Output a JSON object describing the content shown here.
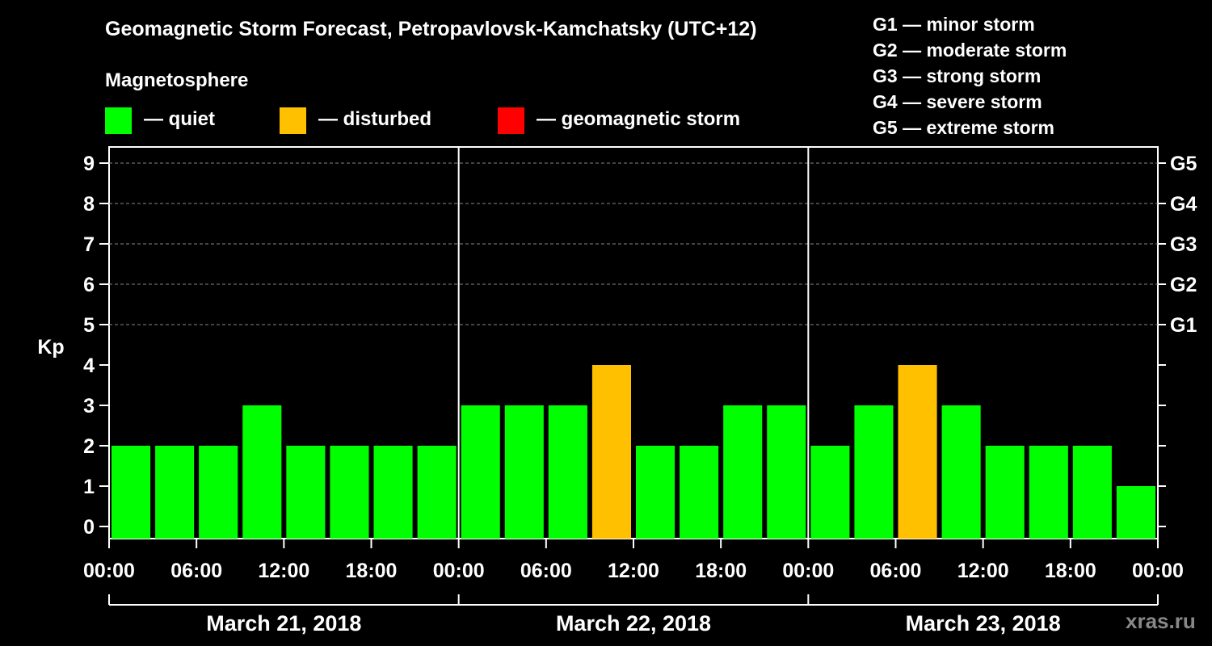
{
  "chart_data": {
    "type": "bar",
    "title": "Geomagnetic Storm Forecast, Petropavlovsk-Kamchatsky (UTC+12)",
    "subtitle": "Magnetosphere",
    "ylabel": "Kp",
    "ylim": [
      0,
      9
    ],
    "yticks": [
      "0",
      "1",
      "2",
      "3",
      "4",
      "5",
      "6",
      "7",
      "8",
      "9"
    ],
    "right_axis": [
      {
        "kp": 5,
        "label": "G1"
      },
      {
        "kp": 6,
        "label": "G2"
      },
      {
        "kp": 7,
        "label": "G3"
      },
      {
        "kp": 8,
        "label": "G4"
      },
      {
        "kp": 9,
        "label": "G5"
      }
    ],
    "legend": [
      {
        "label": "— quiet",
        "color": "#00ff00"
      },
      {
        "label": "— disturbed",
        "color": "#ffc000"
      },
      {
        "label": "— geomagnetic storm",
        "color": "#ff0000"
      }
    ],
    "storm_levels": [
      "G1 — minor storm",
      "G2 — moderate storm",
      "G3 — strong storm",
      "G4 — severe storm",
      "G5 — extreme storm"
    ],
    "xticks": [
      "00:00",
      "06:00",
      "12:00",
      "18:00",
      "00:00",
      "06:00",
      "12:00",
      "18:00",
      "00:00",
      "06:00",
      "12:00",
      "18:00",
      "00:00"
    ],
    "days": [
      "March 21, 2018",
      "March 22, 2018",
      "March 23, 2018"
    ],
    "interval_hours": 3,
    "values": [
      2,
      2,
      2,
      3,
      2,
      2,
      2,
      2,
      3,
      3,
      3,
      4,
      2,
      2,
      3,
      3,
      2,
      3,
      4,
      3,
      2,
      2,
      2,
      1
    ],
    "colors": {
      "quiet": "#00ff00",
      "disturbed": "#ffc000",
      "storm": "#ff0000"
    },
    "grid": true
  },
  "watermark": "xras.ru"
}
